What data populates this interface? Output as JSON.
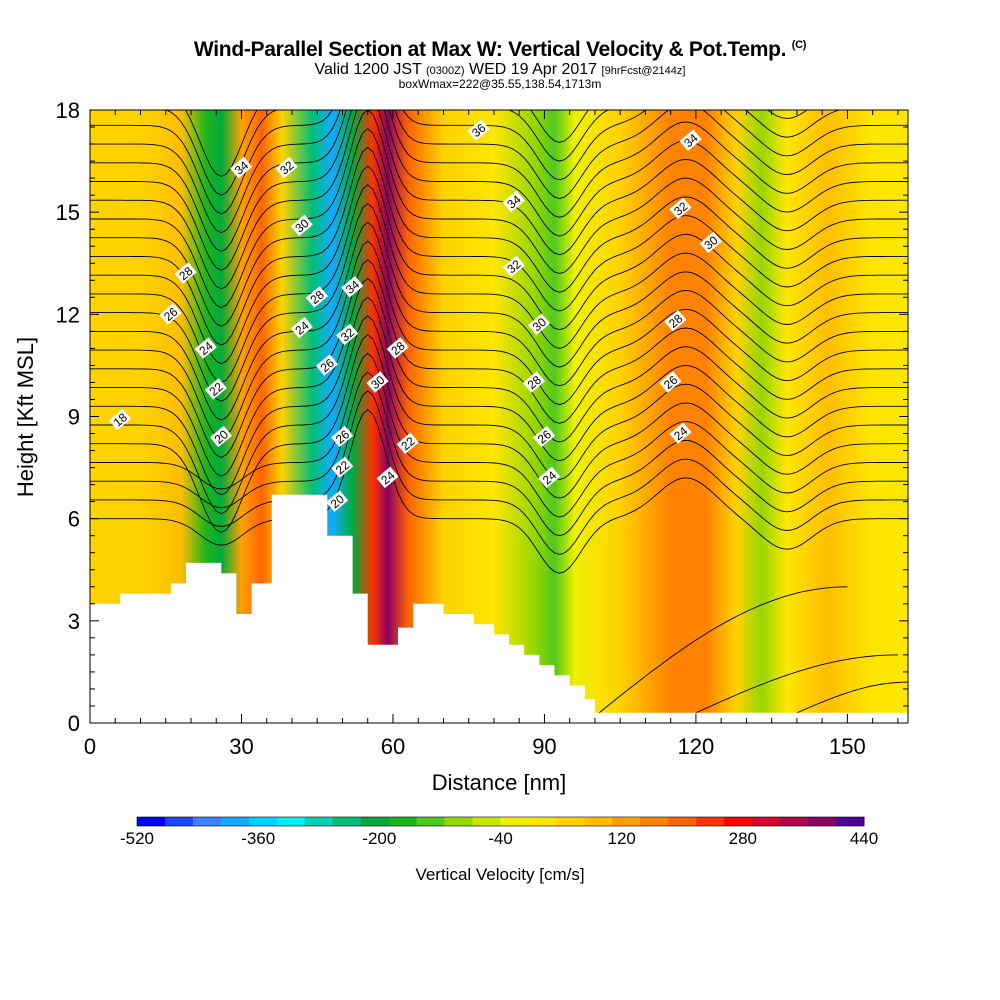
{
  "header": {
    "title_main": "Wind-Parallel Section at Max W: Vertical Velocity & Pot.Temp.",
    "title_units": "(C)",
    "subtitle_valid": "Valid 1200 JST",
    "subtitle_utc": "(0300Z)",
    "subtitle_date": "WED 19 Apr 2017",
    "subtitle_fcst": "[9hrFcst@2144z]",
    "subtitle_box": "boxWmax=222@35.55,138.54,1713m"
  },
  "colorbar": {
    "label": "Vertical Velocity [cm/s]",
    "tick_labels": [
      "-520",
      "-360",
      "-200",
      "-40",
      "120",
      "280",
      "440"
    ],
    "colors": [
      "#0000ff",
      "#1e46ff",
      "#3c82ff",
      "#14aaff",
      "#00d2ff",
      "#00f0f0",
      "#00d2b4",
      "#00be78",
      "#00aa3c",
      "#1eb41e",
      "#50c81e",
      "#96d700",
      "#c8e600",
      "#f0f000",
      "#ffe600",
      "#ffd200",
      "#ffbe00",
      "#ffa000",
      "#ff8200",
      "#ff6400",
      "#ff3200",
      "#ff0000",
      "#dc0032",
      "#b4004b",
      "#8c0064",
      "#500096"
    ]
  },
  "chart_data": {
    "type": "heatmap",
    "title": "Wind-Parallel Section at Max W: Vertical Velocity & Pot.Temp.",
    "xlabel": "Distance [nm]",
    "ylabel": "Height [Kft MSL]",
    "xlim": [
      0,
      162
    ],
    "ylim": [
      0,
      18
    ],
    "xticks": [
      0,
      30,
      60,
      90,
      120,
      150
    ],
    "yticks": [
      0,
      3,
      6,
      9,
      12,
      15,
      18
    ],
    "fill_variable": "Vertical Velocity [cm/s]",
    "contour_variable": "Potential Temperature (C)",
    "w_bands": [
      {
        "x": 0,
        "w": 40
      },
      {
        "x": 10,
        "w": 60
      },
      {
        "x": 18,
        "w": 80
      },
      {
        "x": 23,
        "w": -160
      },
      {
        "x": 26,
        "w": -220
      },
      {
        "x": 30,
        "w": 140
      },
      {
        "x": 34,
        "w": 200
      },
      {
        "x": 38,
        "w": 40
      },
      {
        "x": 44,
        "w": -260
      },
      {
        "x": 48,
        "w": -380
      },
      {
        "x": 52,
        "w": -220
      },
      {
        "x": 56,
        "w": 240
      },
      {
        "x": 59,
        "w": 400
      },
      {
        "x": 63,
        "w": 200
      },
      {
        "x": 70,
        "w": 60
      },
      {
        "x": 80,
        "w": 20
      },
      {
        "x": 88,
        "w": -80
      },
      {
        "x": 92,
        "w": -120
      },
      {
        "x": 96,
        "w": -40
      },
      {
        "x": 105,
        "w": 60
      },
      {
        "x": 115,
        "w": 160
      },
      {
        "x": 122,
        "w": 180
      },
      {
        "x": 128,
        "w": 60
      },
      {
        "x": 133,
        "w": -100
      },
      {
        "x": 138,
        "w": 0
      },
      {
        "x": 146,
        "w": 80
      },
      {
        "x": 155,
        "w": 20
      },
      {
        "x": 162,
        "w": 20
      }
    ],
    "terrain": [
      [
        0,
        3.5
      ],
      [
        6,
        3.5
      ],
      [
        6,
        3.8
      ],
      [
        16,
        3.8
      ],
      [
        16,
        4.1
      ],
      [
        19,
        4.1
      ],
      [
        19,
        4.7
      ],
      [
        26,
        4.7
      ],
      [
        26,
        4.4
      ],
      [
        29,
        4.4
      ],
      [
        29,
        3.2
      ],
      [
        32,
        3.2
      ],
      [
        32,
        4.1
      ],
      [
        36,
        4.1
      ],
      [
        36,
        6.7
      ],
      [
        47,
        6.7
      ],
      [
        47,
        5.5
      ],
      [
        52,
        5.5
      ],
      [
        52,
        3.8
      ],
      [
        55,
        3.8
      ],
      [
        55,
        2.3
      ],
      [
        61,
        2.3
      ],
      [
        61,
        2.8
      ],
      [
        64,
        2.8
      ],
      [
        64,
        3.5
      ],
      [
        70,
        3.5
      ],
      [
        70,
        3.2
      ],
      [
        76,
        3.2
      ],
      [
        76,
        2.9
      ],
      [
        80,
        2.9
      ],
      [
        80,
        2.6
      ],
      [
        83,
        2.6
      ],
      [
        83,
        2.3
      ],
      [
        86,
        2.3
      ],
      [
        86,
        2.0
      ],
      [
        89,
        2.0
      ],
      [
        89,
        1.7
      ],
      [
        92,
        1.7
      ],
      [
        92,
        1.4
      ],
      [
        95,
        1.4
      ],
      [
        95,
        1.1
      ],
      [
        98,
        1.1
      ],
      [
        98,
        0.7
      ],
      [
        100,
        0.7
      ],
      [
        100,
        0.3
      ],
      [
        162,
        0.3
      ]
    ],
    "contour_labels": [
      {
        "text": "18",
        "x": 6,
        "y": 8.9
      },
      {
        "text": "20",
        "x": 26,
        "y": 8.4
      },
      {
        "text": "22",
        "x": 25,
        "y": 9.8
      },
      {
        "text": "24",
        "x": 23,
        "y": 11.0
      },
      {
        "text": "26",
        "x": 16,
        "y": 12.0
      },
      {
        "text": "28",
        "x": 19,
        "y": 13.2
      },
      {
        "text": "34",
        "x": 30,
        "y": 16.3
      },
      {
        "text": "32",
        "x": 39,
        "y": 16.3
      },
      {
        "text": "30",
        "x": 42,
        "y": 14.6
      },
      {
        "text": "28",
        "x": 45,
        "y": 12.5
      },
      {
        "text": "24",
        "x": 42,
        "y": 11.6
      },
      {
        "text": "26",
        "x": 47,
        "y": 10.5
      },
      {
        "text": "34",
        "x": 52,
        "y": 12.8
      },
      {
        "text": "32",
        "x": 51,
        "y": 11.4
      },
      {
        "text": "26",
        "x": 50,
        "y": 8.4
      },
      {
        "text": "22",
        "x": 50,
        "y": 7.5
      },
      {
        "text": "20",
        "x": 49,
        "y": 6.5
      },
      {
        "text": "30",
        "x": 57,
        "y": 10.0
      },
      {
        "text": "28",
        "x": 61,
        "y": 11.0
      },
      {
        "text": "22",
        "x": 63,
        "y": 8.2
      },
      {
        "text": "24",
        "x": 59,
        "y": 7.2
      },
      {
        "text": "36",
        "x": 77,
        "y": 17.4
      },
      {
        "text": "34",
        "x": 84,
        "y": 15.3
      },
      {
        "text": "32",
        "x": 84,
        "y": 13.4
      },
      {
        "text": "30",
        "x": 89,
        "y": 11.7
      },
      {
        "text": "28",
        "x": 88,
        "y": 10.0
      },
      {
        "text": "26",
        "x": 90,
        "y": 8.4
      },
      {
        "text": "24",
        "x": 91,
        "y": 7.2
      },
      {
        "text": "34",
        "x": 119,
        "y": 17.1
      },
      {
        "text": "32",
        "x": 117,
        "y": 15.1
      },
      {
        "text": "30",
        "x": 123,
        "y": 14.1
      },
      {
        "text": "28",
        "x": 116,
        "y": 11.8
      },
      {
        "text": "26",
        "x": 115,
        "y": 10.0
      },
      {
        "text": "24",
        "x": 117,
        "y": 8.5
      }
    ]
  }
}
